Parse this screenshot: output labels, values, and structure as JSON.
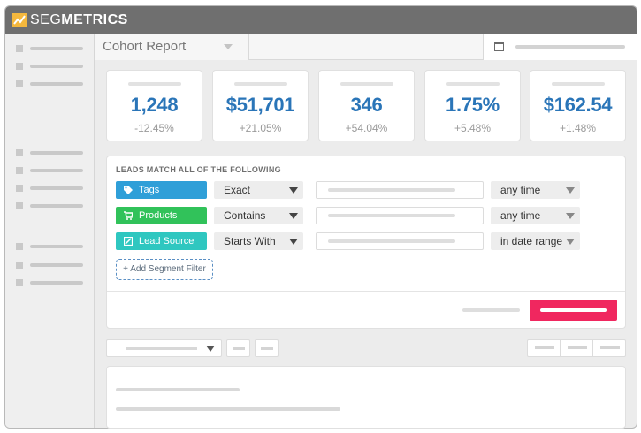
{
  "app": {
    "logo_seg": "SEG",
    "logo_metrics": "METRICS"
  },
  "header": {
    "report_title": "Cohort Report"
  },
  "metrics": [
    {
      "value": "1,248",
      "change": "-12.45%"
    },
    {
      "value": "$51,701",
      "change": "+21.05%"
    },
    {
      "value": "346",
      "change": "+54.04%"
    },
    {
      "value": "1.75%",
      "change": "+5.48%"
    },
    {
      "value": "$162.54",
      "change": "+1.48%"
    }
  ],
  "filters": {
    "heading": "LEADS MATCH ALL OF THE FOLLOWING",
    "rows": [
      {
        "type": "Tags",
        "color": "#2f9fd8",
        "icon": "tag-icon",
        "operator": "Exact",
        "time": "any time"
      },
      {
        "type": "Products",
        "color": "#31c25a",
        "icon": "cart-icon",
        "operator": "Contains",
        "time": "any time"
      },
      {
        "type": "Lead Source",
        "color": "#2fc7c0",
        "icon": "source-icon",
        "operator": "Starts With",
        "time": "in date range"
      }
    ],
    "add_label": "+ Add Segment Filter"
  },
  "colors": {
    "accent": "#2a75b8",
    "run_button": "#f0275f",
    "titlebar": "#6f6f6f"
  }
}
